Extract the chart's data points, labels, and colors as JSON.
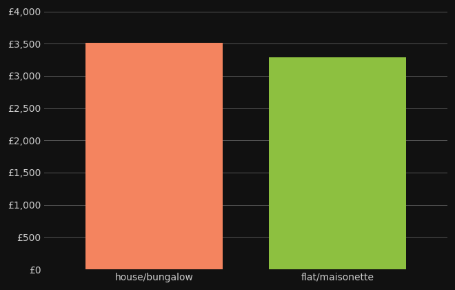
{
  "categories": [
    "house/bungalow",
    "flat/maisonette"
  ],
  "values": [
    3510,
    3290
  ],
  "bar_colors": [
    "#F4845F",
    "#8DC040"
  ],
  "background_color": "#111111",
  "text_color": "#cccccc",
  "grid_color": "#555555",
  "ylim": [
    0,
    4000
  ],
  "yticks": [
    0,
    500,
    1000,
    1500,
    2000,
    2500,
    3000,
    3500,
    4000
  ],
  "ytick_labels": [
    "£0",
    "£500",
    "£1,000",
    "£1,500",
    "£2,000",
    "£2,500",
    "£3,000",
    "£3,500",
    "£4,000"
  ],
  "bar_width": 0.75,
  "figsize": [
    6.6,
    4.2
  ],
  "dpi": 100
}
